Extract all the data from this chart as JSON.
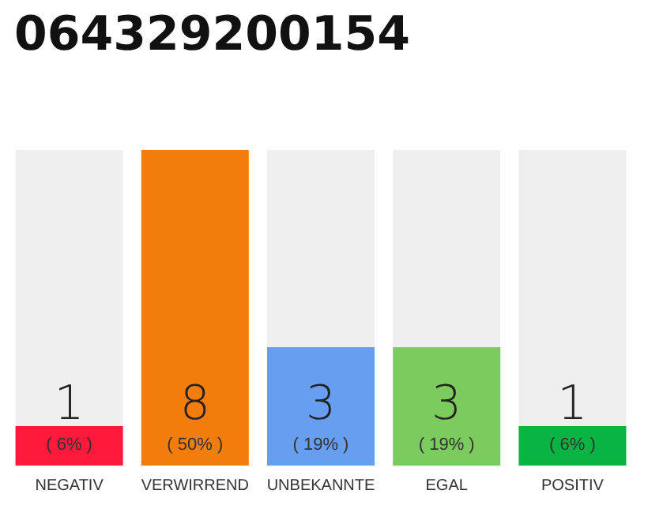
{
  "chart_data": {
    "type": "bar",
    "title": "064329200154",
    "categories": [
      "NEGATIV",
      "VERWIRREND",
      "UNBEKANNTE",
      "EGAL",
      "POSITIV"
    ],
    "values": [
      1,
      8,
      3,
      3,
      1
    ],
    "colors": [
      "#ff1a3c",
      "#f07d0c",
      "#679ef0",
      "#7ccb5f",
      "#0ab443"
    ],
    "data_labels": true,
    "annotations": [
      "( 6% )",
      "( 50% )",
      "( 19% )",
      "( 19% )",
      "( 6% )"
    ],
    "tick_labels": "x"
  }
}
